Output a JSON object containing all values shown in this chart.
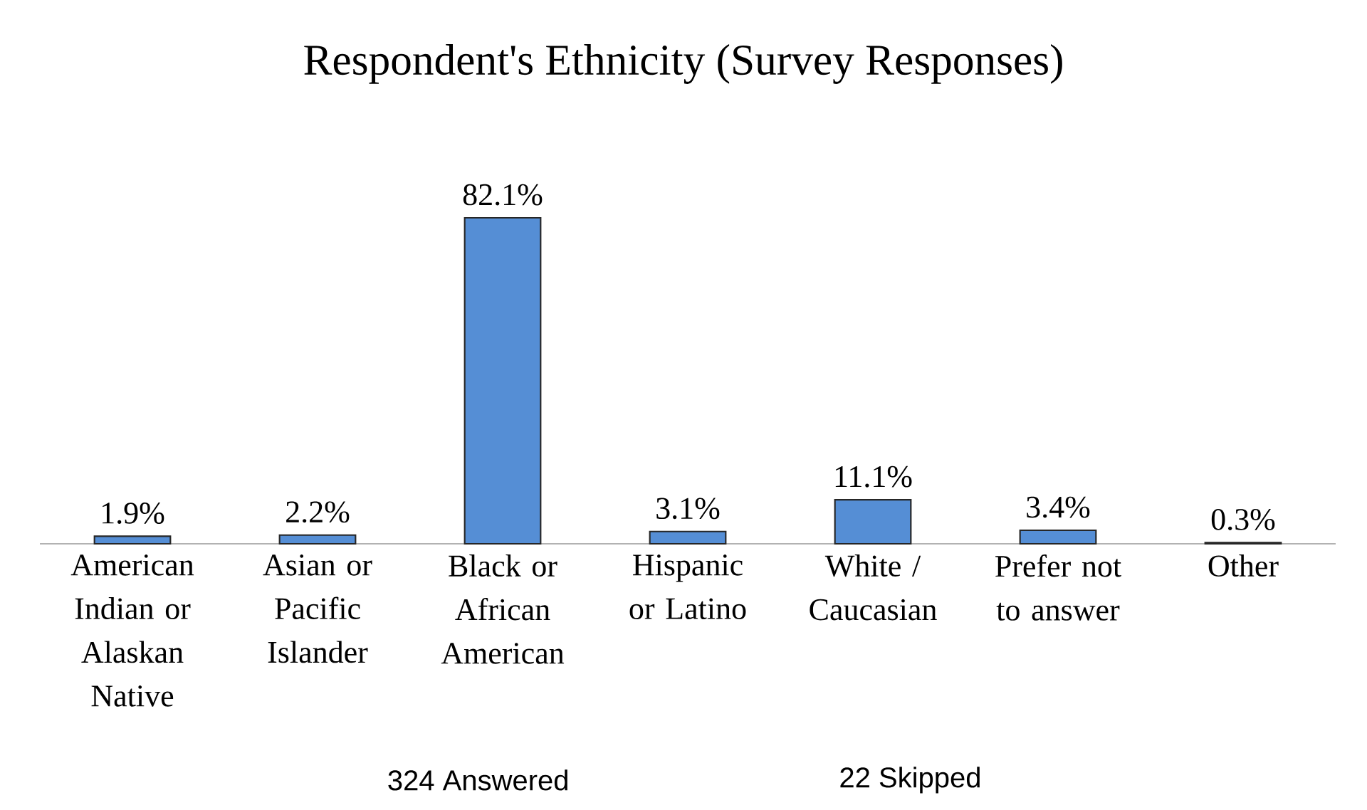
{
  "chart_data": {
    "type": "bar",
    "title": "Respondent's Ethnicity (Survey Responses)",
    "categories": [
      "American Indian or Alaskan Native",
      "Asian or Pacific Islander",
      "Black or African American",
      "Hispanic or Latino",
      "White / Caucasian",
      "Prefer not to answer",
      "Other"
    ],
    "values": [
      1.9,
      2.2,
      82.1,
      3.1,
      11.1,
      3.4,
      0.3
    ],
    "value_labels": [
      "1.9%",
      "2.2%",
      "82.1%",
      "3.1%",
      "11.1%",
      "3.4%",
      "0.3%"
    ],
    "color": "#558ed5",
    "annotations": [
      "324 Answered",
      "22 Skipped"
    ]
  }
}
